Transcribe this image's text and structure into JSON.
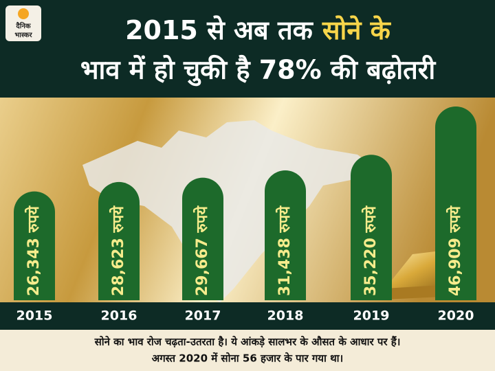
{
  "logo": {
    "line1": "दैनिक",
    "line2": "भास्कर"
  },
  "chart_data": {
    "type": "bar",
    "title": {
      "line1": "2015 से अब तक",
      "highlight": "सोने के",
      "line2": "भाव में हो चुकी है 78% की बढ़ोतरी"
    },
    "categories": [
      "2015",
      "2016",
      "2017",
      "2018",
      "2019",
      "2020"
    ],
    "values": [
      26343,
      28623,
      29667,
      31438,
      35220,
      46909
    ],
    "value_labels": [
      "26,343 रुपये",
      "28,623 रुपये",
      "29,667 रुपये",
      "31,438 रुपये",
      "35,220 रुपये",
      "46,909 रुपये"
    ],
    "color": "#1d6a2b",
    "note": [
      "सोने का भाव रोज चढ़ता-उतरता है। ये आंकड़े सालभर के औसत के आधार पर हैं।",
      "अगस्त 2020 में सोना 56 हजार के पार गया था।"
    ]
  }
}
